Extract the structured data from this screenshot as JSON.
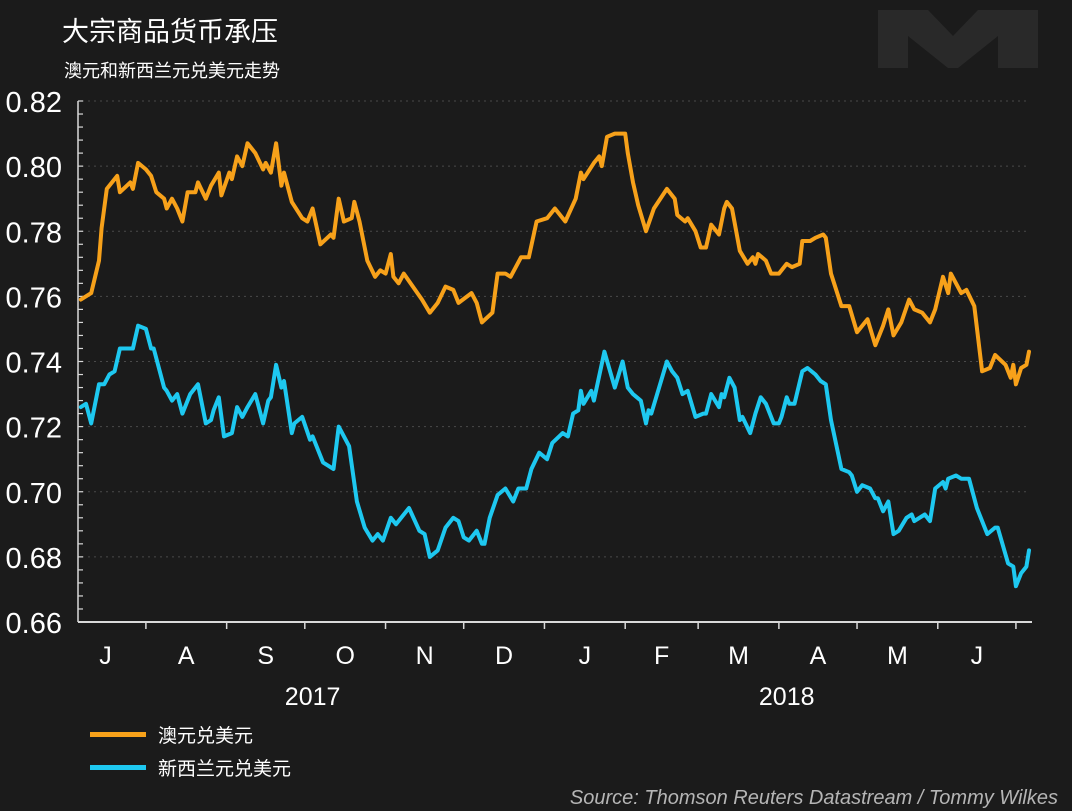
{
  "header": {
    "title": "大宗商品货币承压",
    "subtitle": "澳元和新西兰元兑美元走势"
  },
  "source": "Source: Thomson Reuters Datastream / Tommy Wilkes",
  "colors": {
    "background": "#1b1b1b",
    "aud": "#f7a11a",
    "nzd": "#1ec8f0",
    "grid": "#4a4a4a",
    "axis": "#d9d9d9"
  },
  "chart_data": {
    "type": "line",
    "title": "大宗商品货币承压",
    "subtitle": "澳元和新西兰元兑美元走势",
    "x_unit": "days since 2017-07-01",
    "xlim": [
      5.7,
      370.4
    ],
    "ylim": [
      0.66,
      0.82
    ],
    "grid": true,
    "legend_position": "bottom-left",
    "yticks": [
      0.66,
      0.68,
      0.7,
      0.72,
      0.74,
      0.76,
      0.78,
      0.8,
      0.82
    ],
    "ytick_labels": [
      "0.66",
      "0.68",
      "0.70",
      "0.72",
      "0.74",
      "0.76",
      "0.78",
      "0.80",
      "0.82"
    ],
    "month_boundaries": [
      31,
      62,
      92,
      123,
      153,
      184,
      215,
      243,
      274,
      304,
      335,
      365
    ],
    "month_labels": [
      {
        "label": "J",
        "x": 15.5
      },
      {
        "label": "A",
        "x": 46.5
      },
      {
        "label": "S",
        "x": 77
      },
      {
        "label": "O",
        "x": 107.5
      },
      {
        "label": "N",
        "x": 138
      },
      {
        "label": "D",
        "x": 168.5
      },
      {
        "label": "J",
        "x": 199.5
      },
      {
        "label": "F",
        "x": 229
      },
      {
        "label": "M",
        "x": 258.5
      },
      {
        "label": "A",
        "x": 289
      },
      {
        "label": "M",
        "x": 319.5
      },
      {
        "label": "J",
        "x": 350
      }
    ],
    "year_labels": [
      {
        "label": "2017",
        "x": 95
      },
      {
        "label": "2018",
        "x": 277
      }
    ],
    "series": [
      {
        "name": "澳元兑美元",
        "color": "#f7a11a",
        "x": [
          6,
          10,
          13,
          14,
          16,
          20,
          21,
          25,
          26,
          28,
          31,
          33,
          35,
          38,
          39,
          41,
          43,
          45,
          47,
          50,
          51,
          54,
          56,
          59,
          60,
          63,
          64,
          66,
          68,
          70,
          73,
          76,
          77,
          79,
          81,
          83,
          84,
          87,
          91,
          93,
          95,
          98,
          102,
          103,
          105,
          107,
          110,
          111,
          113,
          116,
          119,
          121,
          123,
          125,
          126,
          128,
          130,
          137,
          140,
          143,
          146,
          149,
          151,
          156,
          158,
          160,
          164,
          166,
          169,
          171,
          175,
          178,
          181,
          185,
          188,
          192,
          196,
          198,
          199,
          203,
          205,
          206,
          208,
          211,
          215,
          216,
          218,
          220,
          223,
          226,
          231,
          234,
          235,
          238,
          239,
          242,
          244,
          246,
          248,
          251,
          253,
          254,
          256,
          259,
          262,
          264,
          265,
          266,
          269,
          271,
          274,
          277,
          279,
          282,
          283,
          286,
          288,
          291,
          292,
          294,
          298,
          301,
          304,
          308,
          311,
          314,
          316,
          318,
          321,
          324,
          326,
          329,
          332,
          334,
          337,
          339,
          340,
          344,
          346,
          349,
          352,
          355,
          357,
          361,
          363,
          364,
          365,
          367,
          369,
          370
        ],
        "values": [
          0.759,
          0.761,
          0.771,
          0.781,
          0.793,
          0.797,
          0.792,
          0.795,
          0.793,
          0.801,
          0.799,
          0.797,
          0.792,
          0.79,
          0.787,
          0.79,
          0.787,
          0.783,
          0.792,
          0.792,
          0.795,
          0.79,
          0.794,
          0.798,
          0.791,
          0.798,
          0.796,
          0.803,
          0.8,
          0.807,
          0.804,
          0.799,
          0.801,
          0.798,
          0.807,
          0.794,
          0.798,
          0.789,
          0.784,
          0.783,
          0.787,
          0.776,
          0.779,
          0.778,
          0.79,
          0.783,
          0.784,
          0.789,
          0.783,
          0.771,
          0.766,
          0.768,
          0.767,
          0.773,
          0.766,
          0.764,
          0.767,
          0.759,
          0.755,
          0.758,
          0.763,
          0.762,
          0.758,
          0.761,
          0.758,
          0.752,
          0.755,
          0.767,
          0.767,
          0.766,
          0.772,
          0.772,
          0.783,
          0.784,
          0.787,
          0.783,
          0.79,
          0.798,
          0.796,
          0.801,
          0.803,
          0.8,
          0.809,
          0.81,
          0.81,
          0.804,
          0.795,
          0.788,
          0.78,
          0.787,
          0.793,
          0.79,
          0.785,
          0.783,
          0.784,
          0.78,
          0.775,
          0.775,
          0.782,
          0.779,
          0.787,
          0.789,
          0.787,
          0.774,
          0.77,
          0.772,
          0.77,
          0.773,
          0.771,
          0.767,
          0.767,
          0.77,
          0.769,
          0.77,
          0.777,
          0.777,
          0.778,
          0.779,
          0.778,
          0.767,
          0.757,
          0.757,
          0.749,
          0.753,
          0.745,
          0.751,
          0.756,
          0.748,
          0.752,
          0.759,
          0.756,
          0.755,
          0.752,
          0.756,
          0.766,
          0.761,
          0.767,
          0.761,
          0.762,
          0.757,
          0.737,
          0.738,
          0.742,
          0.739,
          0.735,
          0.739,
          0.733,
          0.738,
          0.739,
          0.743
        ]
      },
      {
        "name": "新西兰元兑美元",
        "color": "#1ec8f0",
        "x": [
          6,
          8,
          10,
          13,
          15,
          17,
          19,
          21,
          24,
          26,
          28,
          31,
          33,
          34,
          38,
          39,
          41,
          43,
          45,
          48,
          51,
          54,
          56,
          57,
          59,
          61,
          64,
          66,
          68,
          70,
          73,
          76,
          78,
          79,
          81,
          83,
          84,
          87,
          88,
          91,
          94,
          95,
          99,
          101,
          103,
          105,
          109,
          112,
          115,
          118,
          120,
          122,
          125,
          127,
          130,
          132,
          136,
          138,
          140,
          143,
          146,
          149,
          151,
          153,
          155,
          158,
          160,
          161,
          163,
          166,
          169,
          172,
          174,
          177,
          179,
          182,
          185,
          187,
          191,
          193,
          195,
          197,
          198,
          199,
          202,
          203,
          207,
          211,
          214,
          216,
          218,
          221,
          223,
          224,
          225,
          228,
          231,
          233,
          235,
          237,
          239,
          242,
          245,
          246,
          248,
          251,
          252,
          253,
          255,
          257,
          259,
          260,
          263,
          265,
          267,
          269,
          272,
          274,
          275,
          277,
          278,
          280,
          283,
          285,
          288,
          290,
          292,
          294,
          298,
          301,
          302,
          304,
          306,
          309,
          311,
          312,
          314,
          316,
          318,
          320,
          323,
          325,
          326,
          330,
          332,
          334,
          337,
          338,
          339,
          342,
          344,
          347,
          350,
          354,
          357,
          358,
          362,
          364,
          365,
          367,
          369,
          370
        ],
        "values": [
          0.726,
          0.727,
          0.721,
          0.733,
          0.733,
          0.736,
          0.737,
          0.744,
          0.744,
          0.744,
          0.751,
          0.75,
          0.744,
          0.744,
          0.732,
          0.731,
          0.728,
          0.73,
          0.724,
          0.73,
          0.733,
          0.721,
          0.722,
          0.725,
          0.729,
          0.717,
          0.718,
          0.726,
          0.723,
          0.726,
          0.73,
          0.721,
          0.728,
          0.729,
          0.739,
          0.732,
          0.734,
          0.718,
          0.721,
          0.723,
          0.716,
          0.717,
          0.709,
          0.708,
          0.707,
          0.72,
          0.714,
          0.697,
          0.689,
          0.685,
          0.687,
          0.685,
          0.692,
          0.69,
          0.693,
          0.695,
          0.688,
          0.687,
          0.68,
          0.682,
          0.689,
          0.692,
          0.691,
          0.686,
          0.685,
          0.688,
          0.684,
          0.684,
          0.692,
          0.699,
          0.701,
          0.697,
          0.701,
          0.701,
          0.707,
          0.712,
          0.71,
          0.715,
          0.718,
          0.717,
          0.724,
          0.725,
          0.731,
          0.727,
          0.731,
          0.728,
          0.743,
          0.732,
          0.74,
          0.732,
          0.73,
          0.728,
          0.721,
          0.725,
          0.724,
          0.732,
          0.74,
          0.737,
          0.735,
          0.73,
          0.731,
          0.723,
          0.724,
          0.724,
          0.73,
          0.726,
          0.73,
          0.729,
          0.735,
          0.732,
          0.722,
          0.723,
          0.718,
          0.724,
          0.729,
          0.727,
          0.721,
          0.721,
          0.723,
          0.729,
          0.727,
          0.727,
          0.737,
          0.738,
          0.736,
          0.734,
          0.733,
          0.722,
          0.707,
          0.706,
          0.705,
          0.7,
          0.702,
          0.701,
          0.698,
          0.698,
          0.694,
          0.697,
          0.687,
          0.688,
          0.692,
          0.693,
          0.691,
          0.693,
          0.691,
          0.701,
          0.703,
          0.701,
          0.704,
          0.705,
          0.704,
          0.704,
          0.695,
          0.687,
          0.689,
          0.689,
          0.678,
          0.677,
          0.671,
          0.675,
          0.677,
          0.682
        ]
      }
    ]
  }
}
